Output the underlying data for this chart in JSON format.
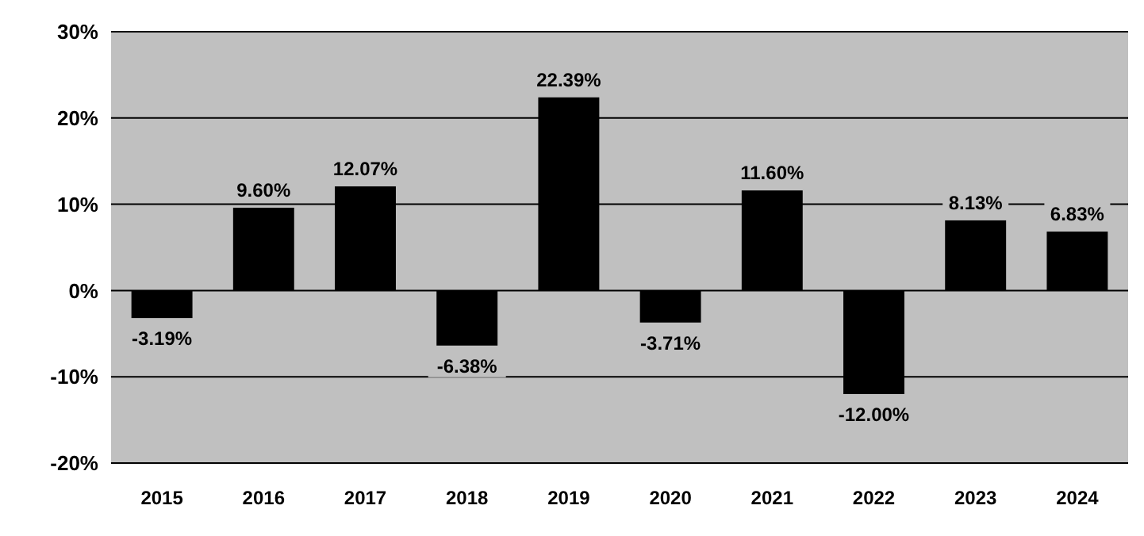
{
  "chart_data": {
    "type": "bar",
    "categories": [
      "2015",
      "2016",
      "2017",
      "2018",
      "2019",
      "2020",
      "2021",
      "2022",
      "2023",
      "2024"
    ],
    "values": [
      -3.19,
      9.6,
      12.07,
      -6.38,
      22.39,
      -3.71,
      11.6,
      -12.0,
      8.13,
      6.83
    ],
    "value_labels": [
      "-3.19%",
      "9.60%",
      "12.07%",
      "-6.38%",
      "22.39%",
      "-3.71%",
      "11.60%",
      "-12.00%",
      "8.13%",
      "6.83%"
    ],
    "color": "#000000",
    "ylim": [
      -20,
      30
    ],
    "yticks": [
      {
        "value": -20,
        "label": "-20%"
      },
      {
        "value": -10,
        "label": "-10%"
      },
      {
        "value": 0,
        "label": "0%"
      },
      {
        "value": 10,
        "label": "10%"
      },
      {
        "value": 20,
        "label": "20%"
      },
      {
        "value": 30,
        "label": "30%"
      }
    ],
    "grid": "y"
  }
}
